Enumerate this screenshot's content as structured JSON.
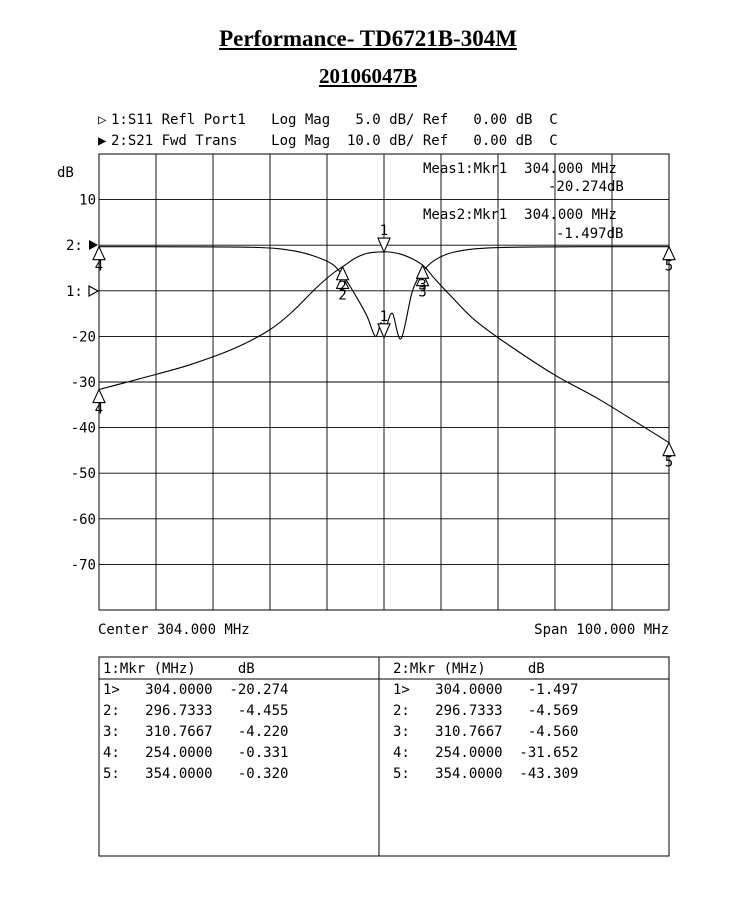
{
  "title": "Performance- TD6721B-304M",
  "subtitle": "20106047B",
  "header": {
    "line1": "1:S11 Refl Port1   Log Mag   5.0 dB/ Ref   0.00 dB  C",
    "line2": "2:S21 Fwd Trans    Log Mag  10.0 dB/ Ref   0.00 dB  C"
  },
  "meas": {
    "m1_label": "Meas1:Mkr1  304.000 MHz",
    "m1_value": "-20.274dB",
    "m2_label": "Meas2:Mkr1  304.000 MHz",
    "m2_value": "-1.497dB"
  },
  "axis": {
    "unit": "dB",
    "ref2": "2:",
    "ref1": "1:",
    "center": "Center 304.000 MHz",
    "span": "Span 100.000 MHz"
  },
  "table": {
    "left_header": "1:Mkr (MHz)     dB",
    "right_header": "2:Mkr (MHz)     dB",
    "left_rows": [
      "1>   304.0000  -20.274",
      "2:   296.7333   -4.455",
      "3:   310.7667   -4.220",
      "4:   254.0000   -0.331",
      "5:   354.0000   -0.320"
    ],
    "right_rows": [
      "1>   304.0000   -1.497",
      "2:   296.7333   -4.569",
      "3:   310.7667   -4.560",
      "4:   254.0000  -31.652",
      "5:   354.0000  -43.309"
    ]
  },
  "chart_data": {
    "type": "line",
    "xlim": [
      254,
      354
    ],
    "ylim": [
      -80,
      20
    ],
    "grid": true,
    "yticks": [
      {
        "label": "10",
        "value": 10
      },
      {
        "label": "-20",
        "value": -20
      },
      {
        "label": "-30",
        "value": -30
      },
      {
        "label": "-40",
        "value": -40
      },
      {
        "label": "-50",
        "value": -50
      },
      {
        "label": "-60",
        "value": -60
      },
      {
        "label": "-70",
        "value": -70
      }
    ],
    "series": [
      {
        "name": "S11 Refl Port1",
        "scale": "5.0 dB/div",
        "x": [
          254,
          268,
          282,
          288,
          292,
          295,
          297,
          299,
          301,
          302.5,
          303.5,
          304,
          304.5,
          305.5,
          307,
          309,
          311,
          313,
          316,
          320,
          326,
          340,
          354
        ],
        "y": [
          -0.33,
          -0.35,
          -0.5,
          -1.2,
          -2.5,
          -4.2,
          -7.0,
          -11.0,
          -15.5,
          -20.0,
          -17.0,
          -20.3,
          -17.5,
          -15.0,
          -20.5,
          -10.0,
          -5.5,
          -3.2,
          -1.6,
          -0.8,
          -0.45,
          -0.33,
          -0.32
        ]
      },
      {
        "name": "S21 Fwd Trans",
        "scale": "10.0 dB/div",
        "x": [
          254,
          262,
          270,
          278,
          284,
          288,
          292,
          295,
          297,
          299,
          301,
          303,
          304,
          305,
          307,
          309,
          311,
          313,
          316,
          320,
          326,
          334,
          342,
          354
        ],
        "y": [
          -31.65,
          -29.0,
          -26.2,
          -22.5,
          -18.5,
          -14.5,
          -9.5,
          -6.2,
          -4.5,
          -2.8,
          -1.8,
          -1.5,
          -1.5,
          -1.5,
          -2.0,
          -3.0,
          -4.6,
          -7.5,
          -11.5,
          -16.5,
          -22.0,
          -28.5,
          -34.0,
          -43.3
        ]
      }
    ],
    "markers": {
      "S11": [
        {
          "id": "1",
          "x": 304.0,
          "y": -20.274
        },
        {
          "id": "2",
          "x": 296.7333,
          "y": -4.455
        },
        {
          "id": "3",
          "x": 310.7667,
          "y": -4.22
        },
        {
          "id": "4",
          "x": 254.0,
          "y": -0.331
        },
        {
          "id": "5",
          "x": 354.0,
          "y": -0.32
        }
      ],
      "S21": [
        {
          "id": "1",
          "x": 304.0,
          "y": -1.497
        },
        {
          "id": "2",
          "x": 296.7333,
          "y": -4.569
        },
        {
          "id": "3",
          "x": 310.7667,
          "y": -4.56
        },
        {
          "id": "4",
          "x": 254.0,
          "y": -31.652
        },
        {
          "id": "5",
          "x": 354.0,
          "y": -43.309
        }
      ]
    }
  }
}
